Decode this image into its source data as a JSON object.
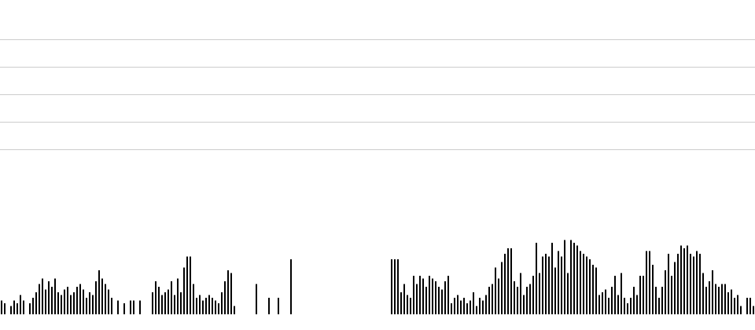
{
  "chart_data": {
    "type": "bar",
    "color": "#000000",
    "ylim": [
      0,
      11
    ],
    "gridlines": [
      6,
      7,
      8,
      9,
      10
    ],
    "values": [
      0.5,
      0.4,
      0,
      0.3,
      0.5,
      0.4,
      0.7,
      0.5,
      0,
      0.4,
      0.6,
      0.8,
      1.1,
      1.3,
      0.9,
      1.2,
      1.0,
      1.3,
      0.8,
      0.7,
      0.9,
      1.0,
      0.7,
      0.8,
      1.0,
      1.1,
      0.9,
      0.6,
      0.8,
      0.7,
      1.2,
      1.6,
      1.3,
      1.1,
      0.9,
      0.6,
      0,
      0.5,
      0,
      0.4,
      0,
      0.5,
      0.5,
      0,
      0.5,
      0,
      0,
      0,
      0.8,
      1.2,
      1.0,
      0.7,
      0.8,
      0.9,
      1.2,
      0.7,
      1.3,
      0.8,
      1.7,
      2.1,
      2.1,
      1.1,
      0.6,
      0.7,
      0.5,
      0.6,
      0.7,
      0.6,
      0.5,
      0.4,
      0.8,
      1.2,
      1.6,
      1.5,
      0.3,
      0,
      0,
      0,
      0,
      0,
      0,
      1.1,
      0,
      0,
      0,
      0.6,
      0,
      0,
      0.6,
      0,
      0,
      0,
      2.0,
      0,
      0,
      0,
      0,
      0,
      0,
      0,
      0,
      0,
      0,
      0,
      0,
      0,
      0,
      0,
      0,
      0,
      0,
      0,
      0,
      0,
      0,
      0,
      0,
      0,
      0,
      0,
      0,
      0,
      0,
      0,
      2.0,
      2.0,
      2.0,
      0.8,
      1.1,
      0.7,
      0.6,
      1.4,
      1.1,
      1.4,
      1.3,
      1.0,
      1.4,
      1.3,
      1.2,
      1.0,
      0.9,
      1.2,
      1.4,
      0.4,
      0.6,
      0.7,
      0.5,
      0.6,
      0.4,
      0.5,
      0.8,
      0.3,
      0.6,
      0.5,
      0.7,
      1.0,
      1.1,
      1.7,
      1.3,
      1.9,
      2.2,
      2.4,
      2.4,
      1.2,
      1.0,
      1.5,
      0.7,
      1.0,
      1.1,
      1.4,
      2.6,
      1.5,
      2.1,
      2.2,
      2.1,
      2.6,
      1.7,
      2.3,
      2.1,
      2.7,
      1.5,
      2.7,
      2.6,
      2.5,
      2.3,
      2.2,
      2.1,
      2.0,
      1.8,
      1.7,
      0.7,
      0.8,
      0.9,
      0.6,
      1.0,
      1.4,
      0.7,
      1.5,
      0.6,
      0.4,
      0.6,
      1.0,
      0.7,
      1.4,
      1.4,
      2.3,
      2.3,
      1.8,
      1.0,
      0.6,
      1.0,
      1.6,
      2.2,
      1.4,
      1.9,
      2.2,
      2.5,
      2.4,
      2.5,
      2.2,
      2.1,
      2.3,
      2.2,
      1.5,
      1.0,
      1.2,
      1.6,
      1.1,
      1.0,
      1.1,
      1.1,
      0.8,
      0.9,
      0.6,
      0.7,
      0.3,
      0,
      0.6,
      0.6,
      0.3
    ]
  }
}
